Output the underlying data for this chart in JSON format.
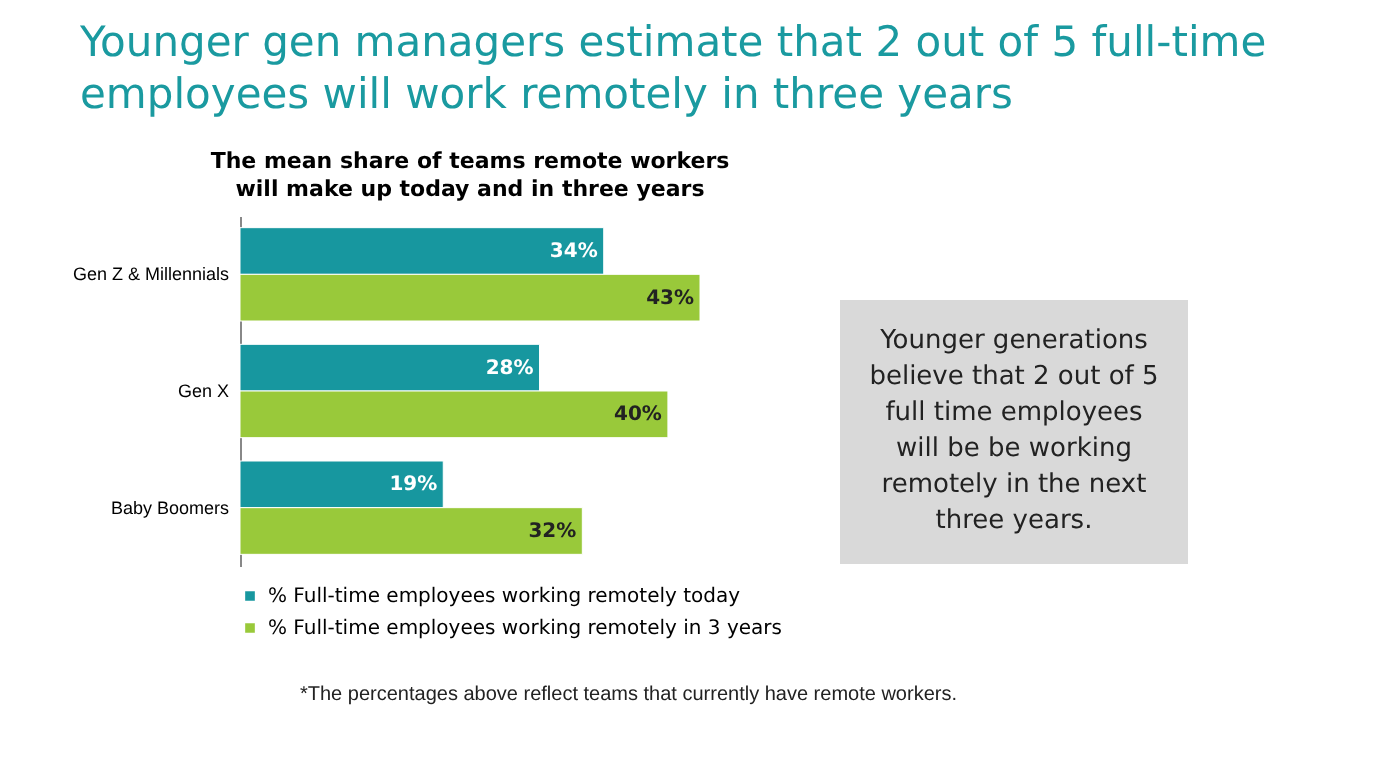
{
  "chart_data": {
    "type": "bar",
    "orientation": "horizontal",
    "title": "Younger gen managers estimate that 2 out of 5 full-time employees will work remotely in three years",
    "subtitle": "The mean share of teams remote workers will make up today and in three years",
    "categories": [
      "Gen Z & Millennials",
      "Gen X",
      "Baby Boomers"
    ],
    "series": [
      {
        "name": "% Full-time employees working remotely today",
        "color": "#17979f",
        "values": [
          34,
          28,
          19
        ],
        "value_labels": [
          "34%",
          "28%",
          "19%"
        ]
      },
      {
        "name": "% Full-time employees working remotely in 3 years",
        "color": "#99c93a",
        "values": [
          43,
          40,
          32
        ],
        "value_labels": [
          "43%",
          "40%",
          "32%"
        ]
      }
    ],
    "legend": "bottom",
    "annotations": [
      "Younger generations believe that 2 out of 5 full time employees will be be working remotely in the next three years.",
      "*The percentages above reflect teams that currently have remote workers."
    ]
  }
}
